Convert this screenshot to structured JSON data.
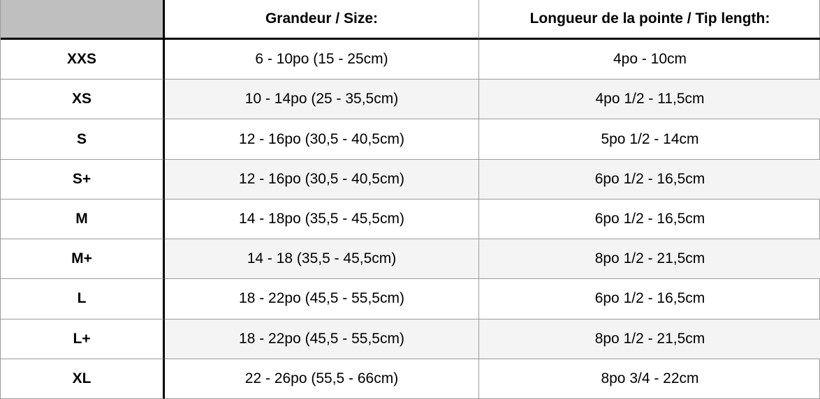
{
  "table": {
    "columns": {
      "size_header": "",
      "grandeur_header": "Grandeur / Size:",
      "tip_header": "Longueur de la pointe / Tip length:"
    },
    "rows": [
      {
        "size": "XXS",
        "grandeur": "6 - 10po (15 - 25cm)",
        "tip": "4po - 10cm"
      },
      {
        "size": "XS",
        "grandeur": "10 - 14po (25 - 35,5cm)",
        "tip": "4po 1/2 - 11,5cm"
      },
      {
        "size": "S",
        "grandeur": "12 - 16po (30,5 - 40,5cm)",
        "tip": "5po 1/2 - 14cm"
      },
      {
        "size": "S+",
        "grandeur": "12 - 16po (30,5 - 40,5cm)",
        "tip": "6po 1/2 - 16,5cm"
      },
      {
        "size": "M",
        "grandeur": "14 - 18po (35,5 - 45,5cm)",
        "tip": "6po 1/2 - 16,5cm"
      },
      {
        "size": "M+",
        "grandeur": "14 - 18 (35,5 - 45,5cm)",
        "tip": "8po 1/2 - 21,5cm"
      },
      {
        "size": "L",
        "grandeur": "18 - 22po (45,5 - 55,5cm)",
        "tip": "6po 1/2 - 16,5cm"
      },
      {
        "size": "L+",
        "grandeur": "18 - 22po (45,5 - 55,5cm)",
        "tip": "8po 1/2 - 21,5cm"
      },
      {
        "size": "XL",
        "grandeur": "22 - 26po (55,5 - 66cm)",
        "tip": "8po 3/4 - 22cm"
      }
    ],
    "colors": {
      "corner_cell_bg": "#bfbfbf",
      "stripe_bg": "#f4f4f4",
      "grid_line": "#9b9b9b",
      "strong_line": "#000000"
    }
  }
}
